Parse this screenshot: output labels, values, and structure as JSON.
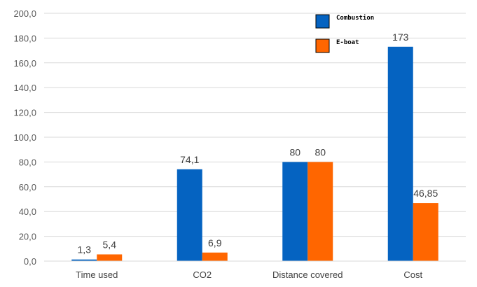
{
  "chart_data": {
    "type": "bar",
    "categories": [
      "Time used",
      "CO2",
      "Distance covered",
      "Cost"
    ],
    "series": [
      {
        "name": "Combustion",
        "values": [
          1.3,
          74.1,
          80,
          173
        ],
        "labels": [
          "1,3",
          "74,1",
          "80",
          "173"
        ],
        "color": "#0563C1"
      },
      {
        "name": "E-boat",
        "values": [
          5.4,
          6.9,
          80,
          46.85
        ],
        "labels": [
          "5,4",
          "6,9",
          "80",
          "46,85"
        ],
        "color": "#FF6600"
      }
    ],
    "ylim": [
      0,
      200
    ],
    "yticks": [
      0,
      20,
      40,
      60,
      80,
      100,
      120,
      140,
      160,
      180,
      200
    ],
    "ytick_labels": [
      "0,0",
      "20,0",
      "40,0",
      "60,0",
      "80,0",
      "100,0",
      "120,0",
      "140,0",
      "160,0",
      "180,0",
      "200,0"
    ],
    "grid": true,
    "legend": "top-right",
    "title": "",
    "xlabel": "",
    "ylabel": ""
  }
}
